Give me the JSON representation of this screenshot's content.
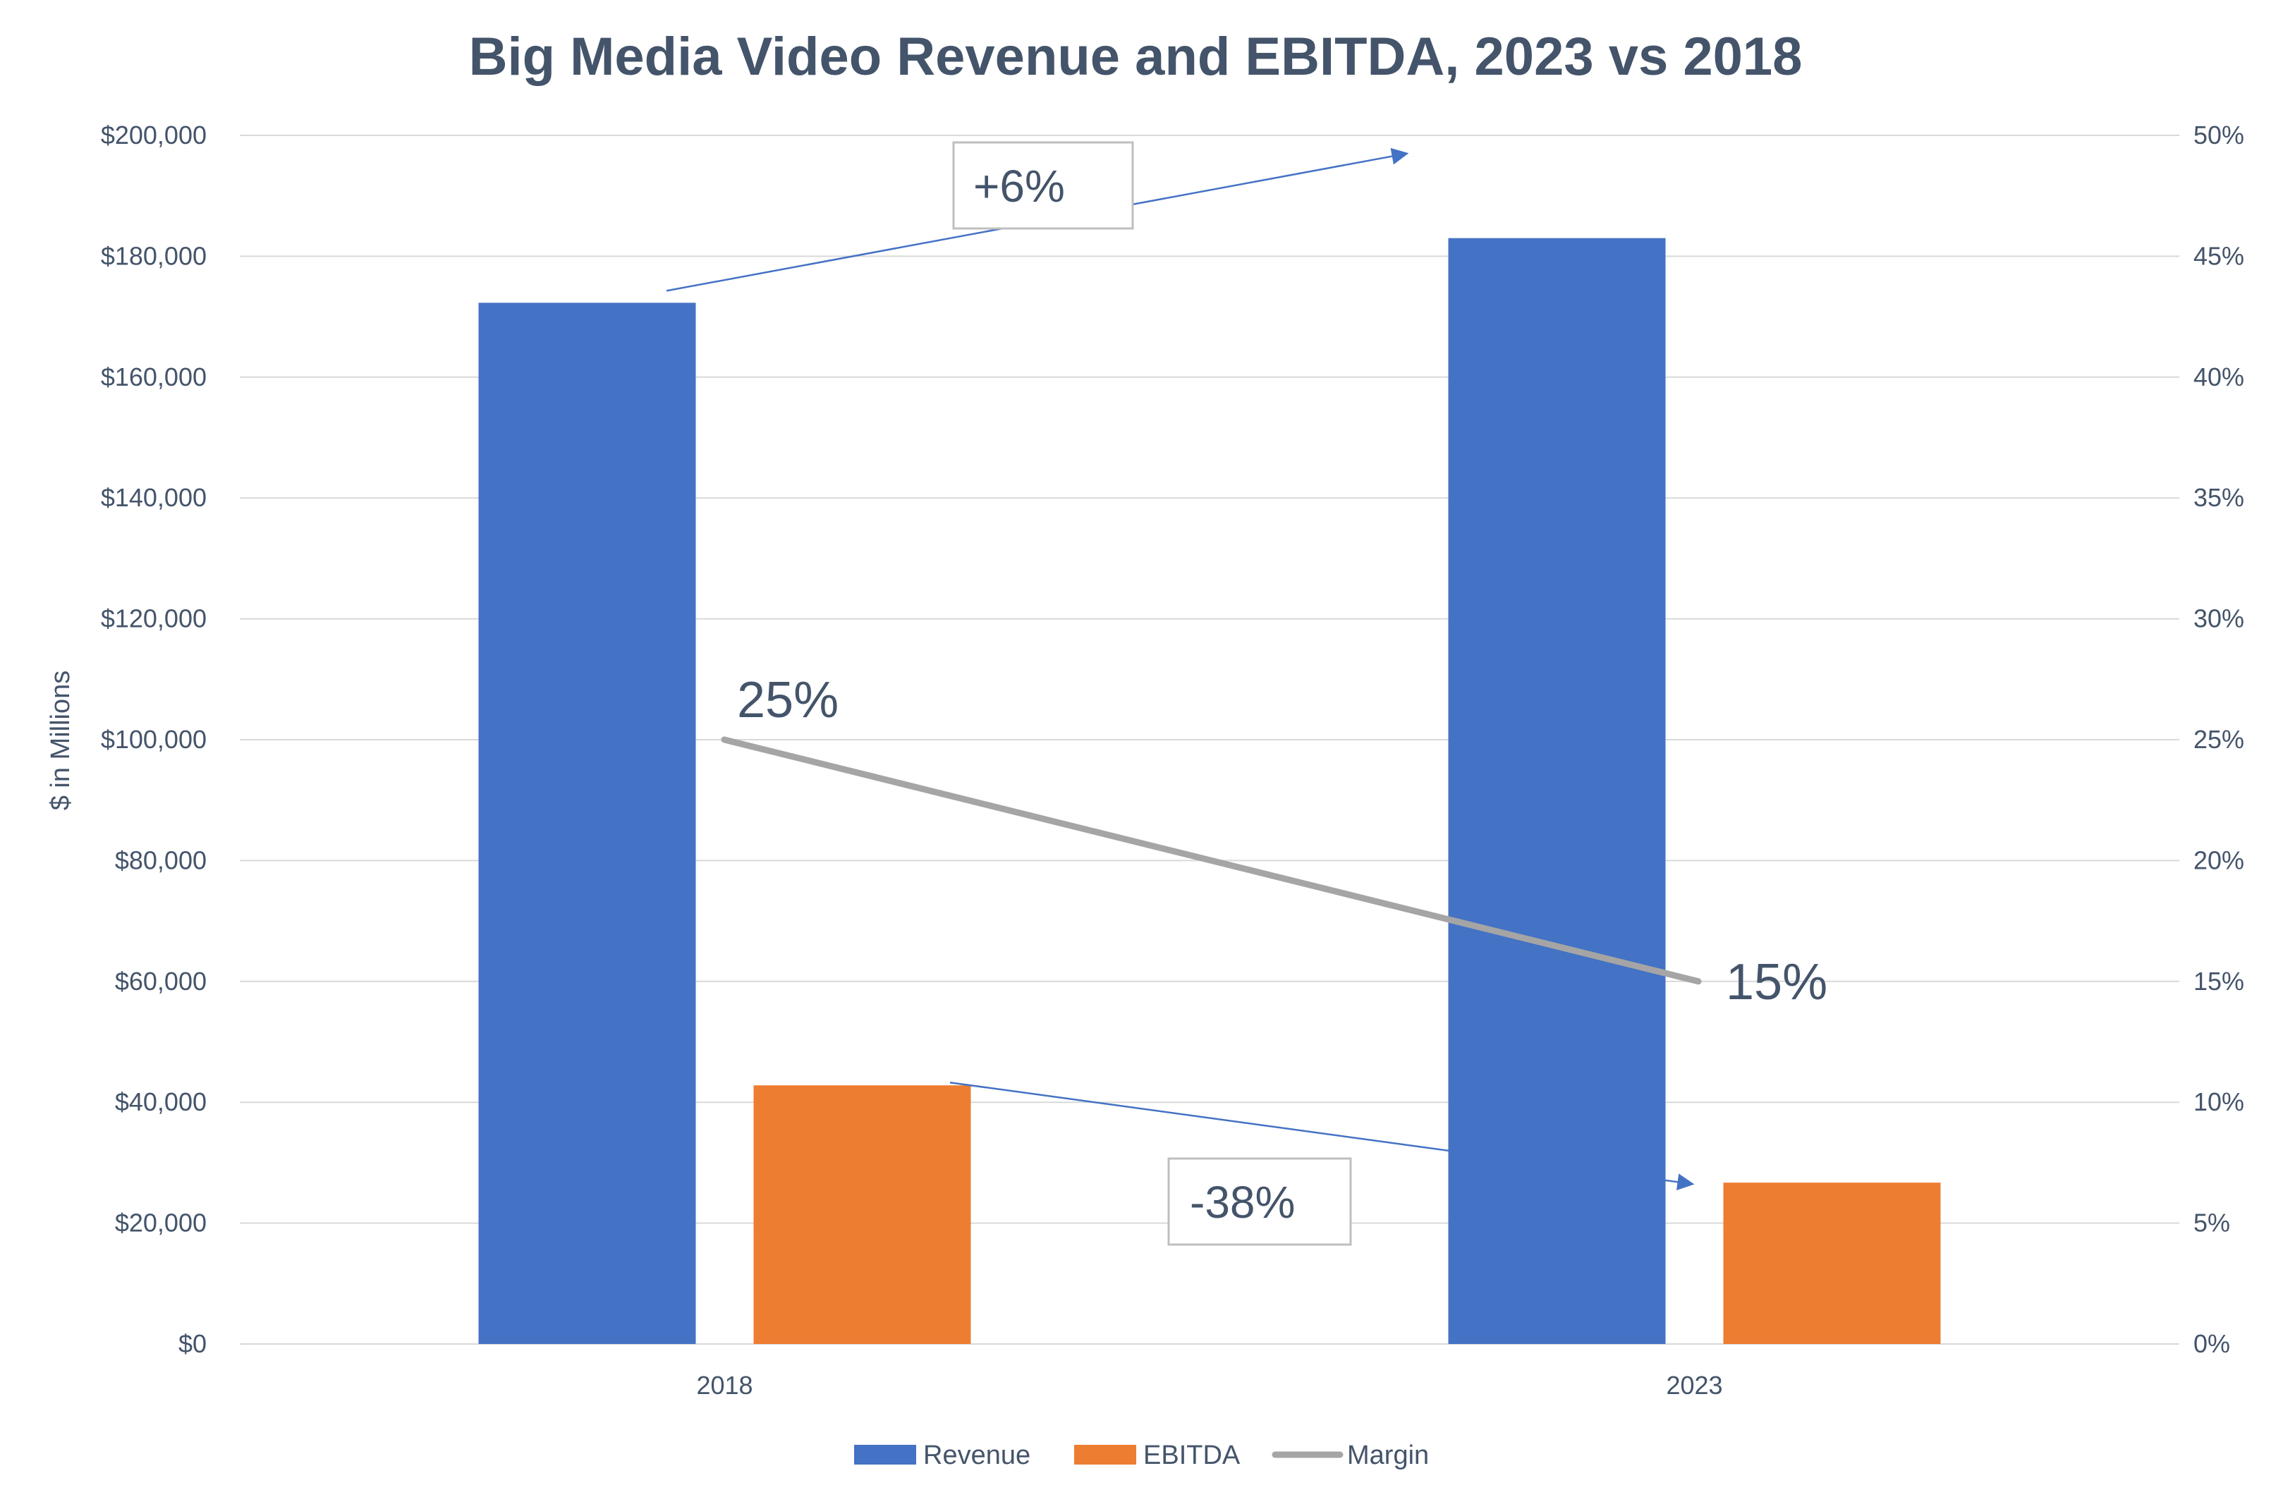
{
  "chart_data": {
    "type": "bar",
    "title": "Big Media Video Revenue and EBITDA, 2023 vs 2018",
    "ylabel": "$ in Millions",
    "categories": [
      "2018",
      "2023"
    ],
    "series": [
      {
        "name": "Revenue",
        "kind": "bar",
        "axis": "left",
        "color": "#4472c4",
        "values": [
          172300,
          183000
        ]
      },
      {
        "name": "EBITDA",
        "kind": "bar",
        "axis": "left",
        "color": "#ed7d31",
        "values": [
          42800,
          26700
        ]
      },
      {
        "name": "Margin",
        "kind": "line",
        "axis": "right",
        "color": "#a5a5a5",
        "values": [
          0.25,
          0.15
        ]
      }
    ],
    "ylim": [
      0,
      200000
    ],
    "y_ticks": [
      "$0",
      "$20,000",
      "$40,000",
      "$60,000",
      "$80,000",
      "$100,000",
      "$120,000",
      "$140,000",
      "$160,000",
      "$180,000",
      "$200,000"
    ],
    "y2lim": [
      0,
      0.5
    ],
    "y2_ticks": [
      "0%",
      "5%",
      "10%",
      "15%",
      "20%",
      "25%",
      "30%",
      "35%",
      "40%",
      "45%",
      "50%"
    ],
    "margin_labels": [
      "25%",
      "15%"
    ],
    "annotations": {
      "revenue_change": "+6%",
      "ebitda_change": "-38%"
    },
    "grid": true,
    "legend_position": "bottom"
  }
}
